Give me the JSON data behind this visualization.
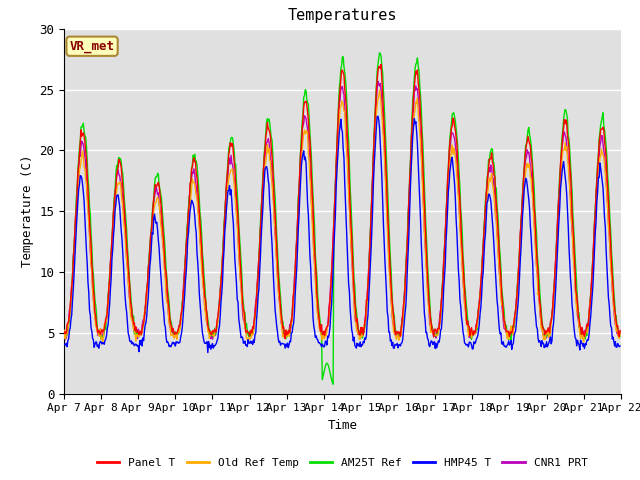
{
  "title": "Temperatures",
  "xlabel": "Time",
  "ylabel": "Temperature (C)",
  "ylim": [
    0,
    30
  ],
  "xtick_labels": [
    "Apr 7",
    "Apr 8",
    "Apr 9",
    "Apr 10",
    "Apr 11",
    "Apr 12",
    "Apr 13",
    "Apr 14",
    "Apr 15",
    "Apr 16",
    "Apr 17",
    "Apr 18",
    "Apr 19",
    "Apr 20",
    "Apr 21",
    "Apr 22"
  ],
  "series_colors": {
    "Panel T": "#ff0000",
    "Old Ref Temp": "#ffaa00",
    "AM25T Ref": "#00dd00",
    "HMP45 T": "#0000ff",
    "CNR1 PRT": "#bb00bb"
  },
  "site_label": "VR_met",
  "plot_bg_color": "#e0e0e0",
  "fig_bg_color": "#ffffff",
  "title_fontsize": 11,
  "axis_label_fontsize": 9,
  "tick_fontsize": 8,
  "legend_fontsize": 8,
  "grid_color": "#ffffff",
  "line_width": 1.0
}
